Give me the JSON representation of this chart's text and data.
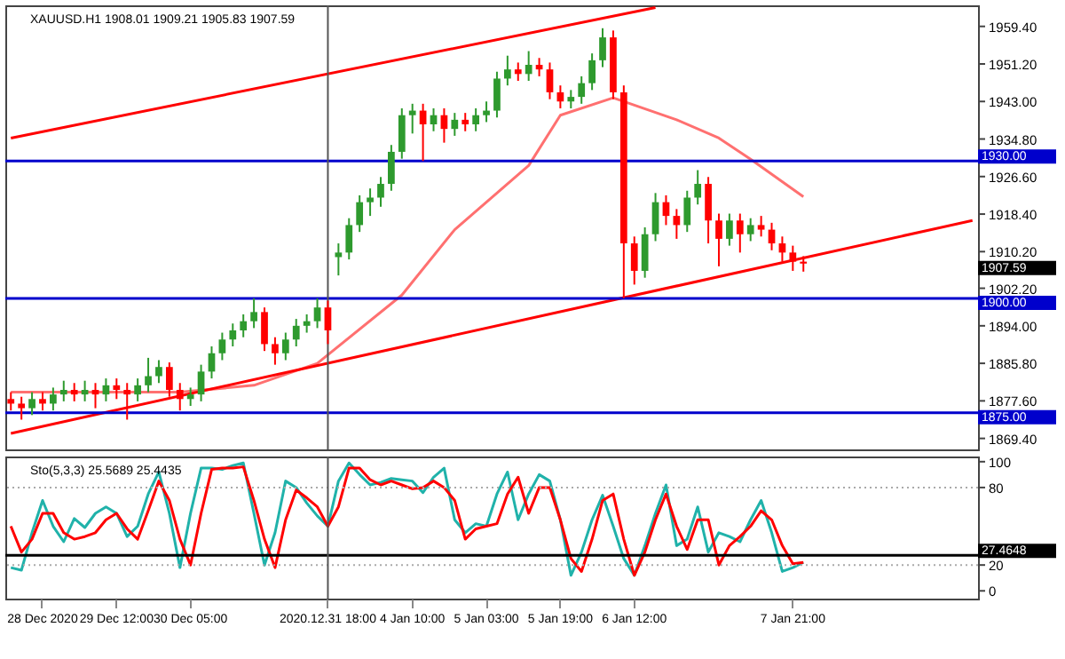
{
  "chart_data": [
    {
      "type": "candlestick",
      "title": "XAUUSD.H1 1908.01 1909.21 1905.83 1907.59",
      "categories": [
        null,
        null,
        null,
        "28 Dec 2020",
        null,
        null,
        null,
        null,
        null,
        null,
        "29 Dec 12:00",
        null,
        null,
        null,
        null,
        null,
        null,
        "30 Dec 05:00",
        null,
        null,
        null,
        null,
        null,
        null,
        null,
        null,
        null,
        null,
        null,
        null,
        "2020.12.31 18:00",
        null,
        null,
        null,
        null,
        null,
        null,
        null,
        "4 Jan 10:00",
        null,
        null,
        null,
        null,
        null,
        null,
        "5 Jan 03:00",
        null,
        null,
        null,
        null,
        null,
        null,
        "5 Jan 19:00",
        null,
        null,
        null,
        null,
        null,
        null,
        "6 Jan 12:00",
        null,
        null,
        null,
        null,
        null,
        null,
        null,
        null,
        null,
        null,
        null,
        null,
        null,
        null,
        "7 Jan 21:00",
        null,
        null,
        null,
        null,
        null,
        null,
        null,
        null,
        null,
        null,
        null,
        null,
        null,
        null,
        null,
        null,
        null
      ],
      "ohlc": [
        [
          1878,
          1879.5,
          1875.5,
          1877
        ],
        [
          1877,
          1878.5,
          1873.5,
          1876
        ],
        [
          1876,
          1879.5,
          1874.5,
          1878
        ],
        [
          1878,
          1879.5,
          1875.5,
          1877
        ],
        [
          1877,
          1880.5,
          1875.5,
          1879
        ],
        [
          1879,
          1882,
          1877.5,
          1880
        ],
        [
          1880,
          1881.5,
          1877.5,
          1879
        ],
        [
          1879,
          1882,
          1877.5,
          1880
        ],
        [
          1880,
          1881.5,
          1876,
          1879
        ],
        [
          1879,
          1882.5,
          1877.5,
          1881
        ],
        [
          1881,
          1882.5,
          1878,
          1880
        ],
        [
          1880,
          1881.5,
          1873.5,
          1879
        ],
        [
          1879,
          1882.5,
          1877.5,
          1881
        ],
        [
          1881,
          1887,
          1879.5,
          1883
        ],
        [
          1883,
          1886.5,
          1881.5,
          1885
        ],
        [
          1885,
          1886,
          1878.5,
          1880
        ],
        [
          1880,
          1881.5,
          1875.5,
          1878
        ],
        [
          1878,
          1880.5,
          1876.5,
          1879
        ],
        [
          1879,
          1885.5,
          1877.5,
          1884
        ],
        [
          1884,
          1889.5,
          1882.5,
          1888
        ],
        [
          1888,
          1892.5,
          1886.5,
          1891
        ],
        [
          1891,
          1894.5,
          1889.5,
          1893
        ],
        [
          1893,
          1896.5,
          1891.5,
          1895
        ],
        [
          1895,
          1900,
          1893.5,
          1897
        ],
        [
          1897,
          1898,
          1888.5,
          1890
        ],
        [
          1890,
          1891.5,
          1885.5,
          1888
        ],
        [
          1888,
          1892.5,
          1886.5,
          1891
        ],
        [
          1891,
          1895.5,
          1889.5,
          1894
        ],
        [
          1894,
          1896.5,
          1892.5,
          1895
        ],
        [
          1895,
          1900,
          1893.5,
          1898
        ],
        [
          1898,
          1899.5,
          1890,
          1893
        ],
        [
          1909,
          1912,
          1905,
          1910
        ],
        [
          1910,
          1917.5,
          1908.5,
          1916
        ],
        [
          1916,
          1922.5,
          1914.5,
          1921
        ],
        [
          1921,
          1924,
          1918,
          1922
        ],
        [
          1922,
          1926.5,
          1920,
          1925
        ],
        [
          1925,
          1933.5,
          1923.5,
          1932
        ],
        [
          1932,
          1941.5,
          1930.5,
          1940
        ],
        [
          1940,
          1942.5,
          1936,
          1941
        ],
        [
          1941,
          1942.5,
          1930,
          1938
        ],
        [
          1938,
          1941.5,
          1936.5,
          1940
        ],
        [
          1940,
          1941.5,
          1934,
          1937
        ],
        [
          1937,
          1940.5,
          1935.5,
          1939
        ],
        [
          1939,
          1940.5,
          1936.5,
          1938
        ],
        [
          1938,
          1941.5,
          1936.5,
          1940
        ],
        [
          1940,
          1943,
          1938.5,
          1941
        ],
        [
          1941,
          1949.5,
          1939.5,
          1948
        ],
        [
          1948,
          1953,
          1946.5,
          1950
        ],
        [
          1950,
          1951.5,
          1947.5,
          1949
        ],
        [
          1949,
          1954,
          1947.5,
          1951
        ],
        [
          1951,
          1952.5,
          1948.5,
          1950
        ],
        [
          1950,
          1951.5,
          1943.5,
          1945
        ],
        [
          1945,
          1946.5,
          1941.5,
          1943
        ],
        [
          1943,
          1945.5,
          1941.5,
          1944
        ],
        [
          1944,
          1948.5,
          1942.5,
          1947
        ],
        [
          1947,
          1953.5,
          1945.5,
          1952
        ],
        [
          1952,
          1959,
          1950.5,
          1957
        ],
        [
          1957,
          1958.5,
          1943.5,
          1945
        ],
        [
          1945,
          1946.5,
          1900,
          1912
        ],
        [
          1912,
          1913.5,
          1903,
          1906
        ],
        [
          1906,
          1915.5,
          1904.5,
          1914
        ],
        [
          1914,
          1923,
          1912.5,
          1921
        ],
        [
          1921,
          1922.5,
          1916,
          1918
        ],
        [
          1918,
          1919.5,
          1913,
          1916
        ],
        [
          1916,
          1923.5,
          1914.5,
          1922
        ],
        [
          1922,
          1928,
          1920.5,
          1925
        ],
        [
          1925,
          1926.5,
          1912,
          1917
        ],
        [
          1917,
          1918.5,
          1907,
          1913
        ],
        [
          1913,
          1918.5,
          1911.5,
          1917
        ],
        [
          1917,
          1918.5,
          1910,
          1914
        ],
        [
          1914,
          1917.5,
          1912.5,
          1916
        ],
        [
          1916,
          1918,
          1913.5,
          1915
        ],
        [
          1915,
          1916.5,
          1910.5,
          1912
        ],
        [
          1912,
          1913.5,
          1908,
          1910
        ],
        [
          1910,
          1911.5,
          1906,
          1908
        ],
        [
          1908.01,
          1909.21,
          1905.83,
          1907.59
        ],
        null,
        null,
        null,
        null,
        null,
        null,
        null,
        null,
        null,
        null,
        null,
        null,
        null,
        null,
        null,
        null
      ],
      "ylim": [
        1867,
        1964
      ],
      "yticks": [
        {
          "value": 1869.4,
          "label": "1869.40"
        },
        {
          "value": 1877.6,
          "label": "1877.60"
        },
        {
          "value": 1885.8,
          "label": "1885.80"
        },
        {
          "value": 1894,
          "label": "1894.00"
        },
        {
          "value": 1902.2,
          "label": "1902.20"
        },
        {
          "value": 1910.2,
          "label": "1910.20"
        },
        {
          "value": 1918.4,
          "label": "1918.40"
        },
        {
          "value": 1926.6,
          "label": "1926.60"
        },
        {
          "value": 1934.8,
          "label": "1934.80"
        },
        {
          "value": 1943,
          "label": "1943.00"
        },
        {
          "value": 1951.2,
          "label": "1951.20"
        },
        {
          "value": 1959.4,
          "label": "1959.40"
        }
      ],
      "tick_labels": "y",
      "series": [
        {
          "type": "line",
          "color": "#ff7070",
          "values": [
            1879.5,
            null,
            null,
            null,
            null,
            null,
            null,
            null,
            null,
            null,
            null,
            null,
            null,
            null,
            null,
            null,
            1879.5,
            null,
            null,
            null,
            null,
            null,
            null,
            1881,
            null,
            null,
            null,
            null,
            null,
            1885.8,
            null,
            null,
            null,
            null,
            null,
            null,
            null,
            1900.7,
            null,
            null,
            null,
            null,
            1915,
            null,
            null,
            null,
            null,
            null,
            null,
            1929,
            null,
            null,
            1940,
            null,
            null,
            null,
            null,
            1943.8,
            null,
            null,
            null,
            null,
            null,
            1939,
            null,
            null,
            null,
            1935,
            null,
            null,
            1930.4,
            null,
            null,
            null,
            null,
            1922.2,
            null,
            null,
            null,
            null,
            null,
            null,
            null,
            null,
            null,
            null,
            null,
            null,
            null,
            null,
            null,
            null
          ]
        },
        {
          "type": "line",
          "color": "#ff0000",
          "values": [
            1935,
            null,
            null,
            null,
            null,
            null,
            null,
            null,
            null,
            null,
            null,
            null,
            null,
            null,
            null,
            null,
            null,
            null,
            null,
            null,
            null,
            null,
            null,
            null,
            null,
            null,
            null,
            null,
            null,
            null,
            null,
            null,
            null,
            null,
            null,
            null,
            null,
            null,
            null,
            null,
            null,
            null,
            null,
            null,
            null,
            null,
            null,
            null,
            null,
            null,
            null,
            null,
            null,
            null,
            null,
            null,
            null,
            null,
            null,
            null,
            null,
            1963.5,
            null,
            null,
            null,
            null,
            null,
            null,
            null,
            null,
            null,
            null,
            null,
            null,
            null,
            null,
            null,
            null,
            null,
            null,
            null,
            null,
            null,
            null,
            null,
            null,
            null,
            null,
            null,
            null,
            null,
            null
          ]
        },
        {
          "type": "line",
          "color": "#ff0000",
          "values": [
            1870.5,
            null,
            null,
            null,
            null,
            null,
            null,
            null,
            null,
            null,
            null,
            null,
            null,
            null,
            null,
            null,
            null,
            null,
            null,
            null,
            null,
            null,
            null,
            null,
            null,
            null,
            null,
            null,
            null,
            null,
            null,
            null,
            null,
            null,
            null,
            null,
            null,
            null,
            null,
            null,
            null,
            null,
            null,
            null,
            null,
            null,
            null,
            null,
            null,
            null,
            null,
            null,
            null,
            null,
            null,
            null,
            null,
            null,
            null,
            null,
            null,
            null,
            null,
            null,
            null,
            null,
            null,
            null,
            null,
            null,
            null,
            null,
            null,
            null,
            null,
            null,
            null,
            null,
            null,
            null,
            null,
            null,
            null,
            null,
            null,
            null,
            null,
            null,
            null,
            null,
            null,
            1917
          ]
        }
      ],
      "ref_lines": [
        {
          "axis": "y",
          "value": 1930,
          "label": "1930.00",
          "color": "#0000cc"
        },
        {
          "axis": "y",
          "value": 1900,
          "label": "1900.00",
          "color": "#0000cc"
        },
        {
          "axis": "y",
          "value": 1875,
          "label": "1875.00",
          "color": "#0000cc"
        },
        {
          "axis": "x",
          "value": "2020.12.31 18:00",
          "color": "#555555"
        }
      ],
      "annotations": [
        "1907.59"
      ]
    },
    {
      "type": "line",
      "title": "Sto(5,3,3) 25.5689 25.4435",
      "categories": [
        null,
        null,
        null,
        "28 Dec 2020",
        null,
        null,
        null,
        null,
        null,
        null,
        "29 Dec 12:00",
        null,
        null,
        null,
        null,
        null,
        null,
        "30 Dec 05:00",
        null,
        null,
        null,
        null,
        null,
        null,
        null,
        null,
        null,
        null,
        null,
        null,
        "2020.12.31 18:00",
        null,
        null,
        null,
        null,
        null,
        null,
        null,
        "4 Jan 10:00",
        null,
        null,
        null,
        null,
        null,
        null,
        "5 Jan 03:00",
        null,
        null,
        null,
        null,
        null,
        null,
        "5 Jan 19:00",
        null,
        null,
        null,
        null,
        null,
        null,
        "6 Jan 12:00",
        null,
        null,
        null,
        null,
        null,
        null,
        null,
        null,
        null,
        null,
        null,
        null,
        null,
        null,
        "7 Jan 21:00",
        null,
        null,
        null,
        null,
        null,
        null,
        null,
        null,
        null,
        null,
        null,
        null,
        null,
        null,
        null,
        null,
        null
      ],
      "ylim": [
        -6,
        104
      ],
      "yticks": [
        0,
        20,
        80,
        100
      ],
      "series": [
        {
          "color": "#20b2aa",
          "values": [
            18,
            16,
            45,
            70,
            50,
            38,
            56,
            49,
            60,
            65,
            60,
            42,
            50,
            75,
            92,
            60,
            18,
            60,
            95,
            95,
            94,
            97,
            99,
            60,
            20,
            45,
            85,
            80,
            68,
            58,
            50,
            85,
            99,
            90,
            82,
            84,
            87,
            86,
            85,
            76,
            88,
            95,
            55,
            45,
            52,
            50,
            75,
            92,
            55,
            75,
            90,
            85,
            55,
            12,
            30,
            55,
            74,
            50,
            25,
            12,
            35,
            60,
            82,
            35,
            40,
            65,
            30,
            45,
            42,
            38,
            55,
            70,
            45,
            15,
            18,
            22,
            null,
            null,
            null,
            null,
            null,
            null,
            null,
            null,
            null,
            null,
            null,
            null,
            null,
            null,
            null,
            null
          ]
        },
        {
          "color": "#ff0000",
          "values": [
            50,
            30,
            40,
            60,
            60,
            45,
            40,
            42,
            45,
            55,
            60,
            48,
            40,
            62,
            85,
            70,
            40,
            20,
            60,
            94,
            95,
            95,
            96,
            70,
            40,
            18,
            55,
            78,
            72,
            65,
            50,
            65,
            95,
            95,
            86,
            82,
            85,
            82,
            79,
            80,
            85,
            80,
            70,
            40,
            48,
            50,
            52,
            75,
            88,
            60,
            80,
            80,
            55,
            25,
            15,
            40,
            70,
            75,
            40,
            12,
            30,
            55,
            75,
            50,
            32,
            55,
            55,
            20,
            35,
            42,
            50,
            62,
            55,
            35,
            21,
            22,
            null,
            null,
            null,
            null,
            null,
            null,
            null,
            null,
            null,
            null,
            null,
            null,
            null,
            null,
            null,
            null
          ]
        }
      ],
      "ref_lines": [
        {
          "axis": "y",
          "value": 80,
          "color": "#aaaaaa",
          "line_style": "dotted"
        },
        {
          "axis": "y",
          "value": 20,
          "color": "#aaaaaa",
          "line_style": "dotted"
        },
        {
          "axis": "y",
          "value": 27.4648,
          "label": "27.4648",
          "color": "#000000"
        },
        {
          "axis": "x",
          "value": "2020.12.31 18:00",
          "color": "#555555"
        }
      ]
    }
  ]
}
